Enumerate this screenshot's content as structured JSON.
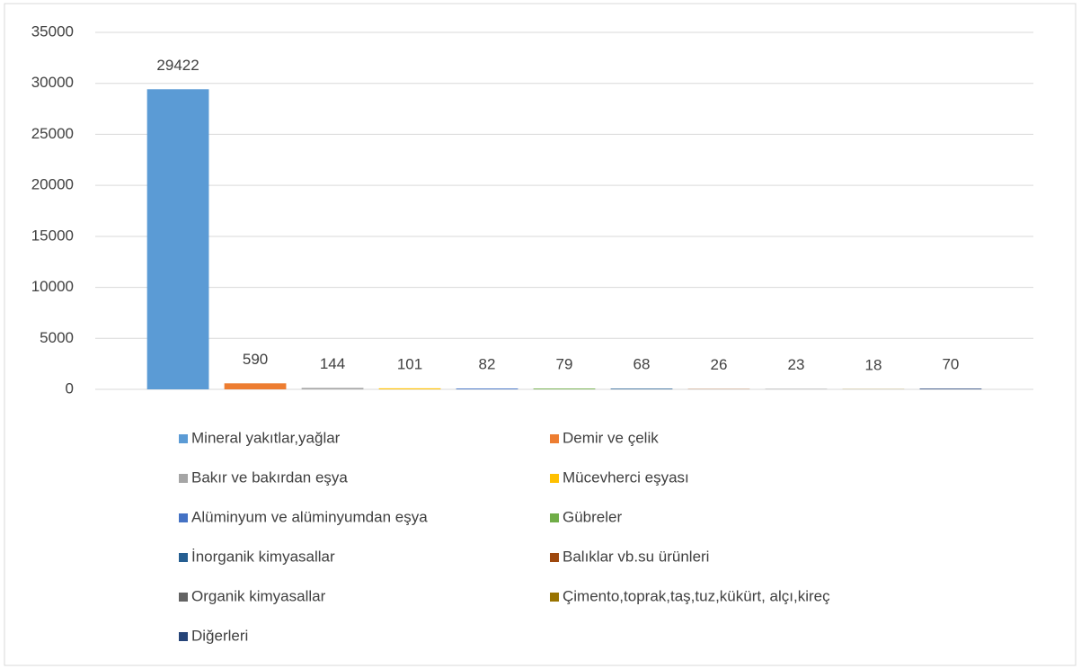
{
  "chart_data": {
    "type": "bar",
    "categories": [
      null
    ],
    "series": [
      {
        "name": "Mineral yakıtlar,yağlar",
        "color": "#5b9bd5",
        "values": [
          29422
        ]
      },
      {
        "name": "Demir ve çelik",
        "color": "#ed7d31",
        "values": [
          590
        ]
      },
      {
        "name": "Bakır ve bakırdan eşya",
        "color": "#a5a5a5",
        "values": [
          144
        ]
      },
      {
        "name": "Mücevherci eşyası",
        "color": "#ffc000",
        "values": [
          101
        ]
      },
      {
        "name": "Alüminyum ve alüminyumdan eşya",
        "color": "#4472c4",
        "values": [
          82
        ]
      },
      {
        "name": "Gübreler",
        "color": "#70ad47",
        "values": [
          79
        ]
      },
      {
        "name": "İnorganik kimyasallar",
        "color": "#255e91",
        "values": [
          68
        ]
      },
      {
        "name": "Balıklar vb.su ürünleri",
        "color": "#9e480e",
        "values": [
          26
        ]
      },
      {
        "name": "Organik kimyasallar",
        "color": "#636363",
        "values": [
          23
        ]
      },
      {
        "name": "Çimento,toprak,taş,tuz,kükürt, alçı,kireç",
        "color": "#997300",
        "values": [
          18
        ]
      },
      {
        "name": "Diğerleri",
        "color": "#264478",
        "values": [
          70
        ]
      }
    ],
    "ylim": [
      0,
      35000
    ],
    "yticks": [
      0,
      5000,
      10000,
      15000,
      20000,
      25000,
      30000,
      35000
    ],
    "grid": true,
    "legend": "bottom"
  }
}
